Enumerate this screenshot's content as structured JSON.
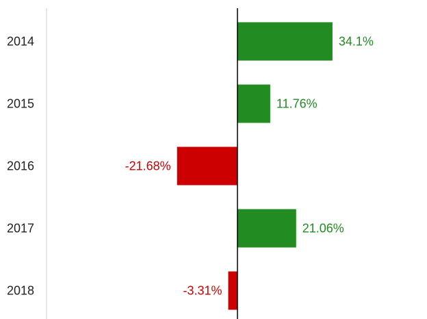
{
  "chart_data": {
    "type": "bar",
    "orientation": "horizontal",
    "categories": [
      "2014",
      "2015",
      "2016",
      "2017",
      "2018"
    ],
    "values": [
      34.1,
      11.76,
      -21.68,
      21.06,
      -3.31
    ],
    "value_labels": [
      "34.1%",
      "11.76%",
      "-21.68%",
      "21.06%",
      "-3.31%"
    ],
    "unit": "%",
    "xlim": [
      -68.5,
      68.5
    ],
    "grid": false,
    "legend": "none",
    "colors": {
      "positive": "#228b22",
      "negative": "#cc0000",
      "zero_line": "#000000",
      "axis": "#cccccc"
    }
  }
}
